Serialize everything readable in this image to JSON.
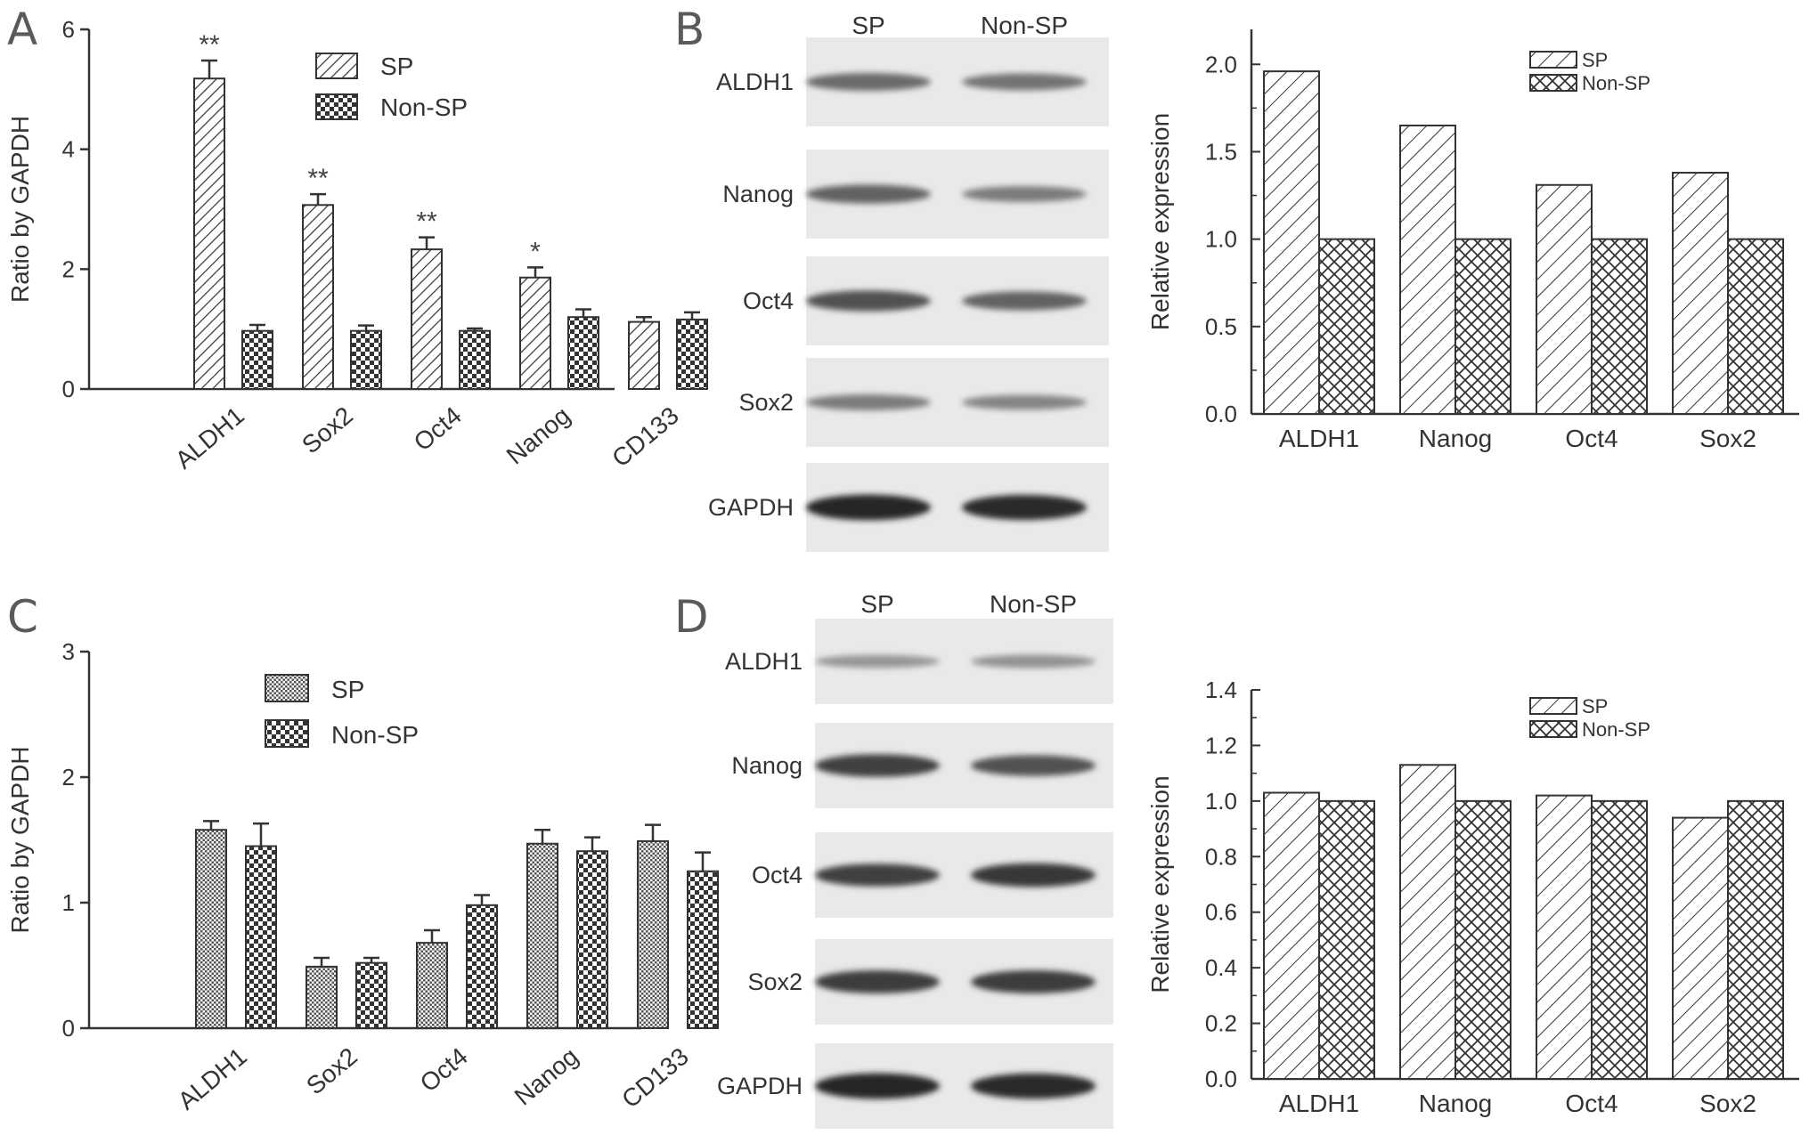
{
  "panels": {
    "A": "A",
    "B": "B",
    "C": "C",
    "D": "D"
  },
  "blots": {
    "B": {
      "lanes": [
        "SP",
        "Non-SP"
      ],
      "rows": [
        {
          "label": "ALDH1",
          "sp": 0.55,
          "nonsp": 0.5
        },
        {
          "label": "Nanog",
          "sp": 0.6,
          "nonsp": 0.45
        },
        {
          "label": "Oct4",
          "sp": 0.7,
          "nonsp": 0.6
        },
        {
          "label": "Sox2",
          "sp": 0.45,
          "nonsp": 0.4
        },
        {
          "label": "GAPDH",
          "sp": 0.95,
          "nonsp": 0.92
        }
      ]
    },
    "D": {
      "lanes": [
        "SP",
        "Non-SP"
      ],
      "rows": [
        {
          "label": "ALDH1",
          "sp": 0.3,
          "nonsp": 0.32
        },
        {
          "label": "Nanog",
          "sp": 0.8,
          "nonsp": 0.7
        },
        {
          "label": "Oct4",
          "sp": 0.8,
          "nonsp": 0.85
        },
        {
          "label": "Sox2",
          "sp": 0.82,
          "nonsp": 0.82
        },
        {
          "label": "GAPDH",
          "sp": 0.95,
          "nonsp": 0.93
        }
      ]
    }
  },
  "chart_data": [
    {
      "id": "A",
      "type": "bar",
      "ylabel": "Ratio by GAPDH",
      "ylim": [
        0,
        6
      ],
      "yticks": [
        "0",
        "2",
        "4",
        "6"
      ],
      "categories": [
        "ALDH1",
        "Sox2",
        "Oct4",
        "Nanog",
        "CD133"
      ],
      "series": [
        {
          "name": "SP",
          "values": [
            5.18,
            3.07,
            2.33,
            1.86,
            1.12
          ],
          "errors": [
            0.3,
            0.18,
            0.2,
            0.17,
            0.08
          ]
        },
        {
          "name": "Non-SP",
          "values": [
            0.97,
            0.97,
            0.97,
            1.2,
            1.16
          ],
          "errors": [
            0.1,
            0.09,
            0.04,
            0.13,
            0.12
          ]
        }
      ],
      "annotations": [
        "**",
        "**",
        "**",
        "*",
        ""
      ],
      "legend_position": "top-right",
      "grid": false
    },
    {
      "id": "B",
      "type": "bar",
      "ylabel": "Relative expression",
      "ylim": [
        0,
        2.2
      ],
      "yticks": [
        "0.0",
        "0.5",
        "1.0",
        "1.5",
        "2.0"
      ],
      "categories": [
        "ALDH1",
        "Nanog",
        "Oct4",
        "Sox2"
      ],
      "series": [
        {
          "name": "SP",
          "values": [
            1.96,
            1.65,
            1.31,
            1.38
          ]
        },
        {
          "name": "Non-SP",
          "values": [
            1.0,
            1.0,
            1.0,
            1.0
          ]
        }
      ],
      "legend_position": "top-right",
      "grid": false
    },
    {
      "id": "C",
      "type": "bar",
      "ylabel": "Ratio by GAPDH",
      "ylim": [
        0,
        3
      ],
      "yticks": [
        "0",
        "1",
        "2",
        "3"
      ],
      "categories": [
        "ALDH1",
        "Sox2",
        "Oct4",
        "Nanog",
        "CD133"
      ],
      "series": [
        {
          "name": "SP",
          "values": [
            1.58,
            0.49,
            0.68,
            1.47,
            1.49
          ],
          "errors": [
            0.07,
            0.07,
            0.1,
            0.11,
            0.13
          ]
        },
        {
          "name": "Non-SP",
          "values": [
            1.45,
            0.52,
            0.98,
            1.41,
            1.25
          ],
          "errors": [
            0.18,
            0.04,
            0.08,
            0.11,
            0.15
          ]
        }
      ],
      "legend_position": "top-right",
      "grid": false
    },
    {
      "id": "D",
      "type": "bar",
      "ylabel": "Relative expression",
      "ylim": [
        0,
        1.4
      ],
      "yticks": [
        "0.0",
        "0.2",
        "0.4",
        "0.6",
        "0.8",
        "1.0",
        "1.2",
        "1.4"
      ],
      "categories": [
        "ALDH1",
        "Nanog",
        "Oct4",
        "Sox2"
      ],
      "series": [
        {
          "name": "SP",
          "values": [
            1.03,
            1.13,
            1.02,
            0.94
          ]
        },
        {
          "name": "Non-SP",
          "values": [
            1.0,
            1.0,
            1.0,
            1.0
          ]
        }
      ],
      "legend_position": "top-right",
      "grid": false
    }
  ]
}
